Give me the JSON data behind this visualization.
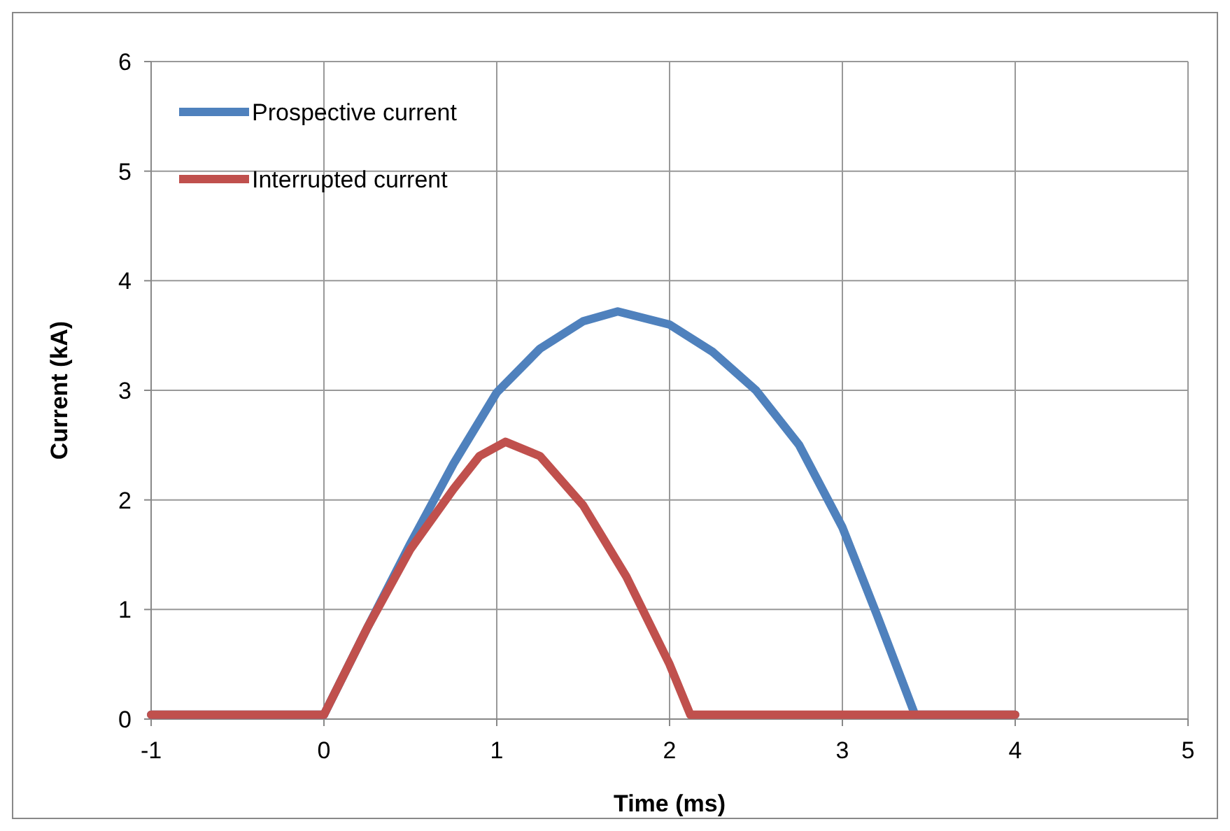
{
  "chart_data": {
    "type": "line",
    "xlabel": "Time (ms)",
    "ylabel": "Current (kA)",
    "xlim": [
      -1,
      5
    ],
    "xticks": [
      -1,
      0,
      1,
      2,
      3,
      4,
      5
    ],
    "ylim": [
      0,
      6
    ],
    "yticks": [
      0,
      1,
      2,
      3,
      4,
      5,
      6
    ],
    "grid": true,
    "legend": "top left",
    "marker": "none",
    "line_style": "solid",
    "series": [
      {
        "name": "Prospective current",
        "color": "#4f81bd",
        "x": [
          -1,
          0,
          0.25,
          0.5,
          0.75,
          1,
          1.25,
          1.5,
          1.7,
          2,
          2.25,
          2.5,
          2.75,
          3,
          3.2,
          3.42,
          4
        ],
        "values": [
          0.04,
          0.04,
          0.83,
          1.6,
          2.33,
          2.98,
          3.38,
          3.63,
          3.72,
          3.6,
          3.35,
          3.0,
          2.5,
          1.75,
          0.95,
          0.04,
          0.04
        ]
      },
      {
        "name": "Interrupted current",
        "color": "#c0504d",
        "x": [
          -1,
          0,
          0.25,
          0.5,
          0.75,
          0.9,
          1.05,
          1.25,
          1.5,
          1.75,
          2,
          2.12,
          4
        ],
        "values": [
          0.04,
          0.04,
          0.83,
          1.55,
          2.1,
          2.4,
          2.53,
          2.4,
          1.95,
          1.3,
          0.5,
          0.04,
          0.04
        ]
      }
    ]
  }
}
